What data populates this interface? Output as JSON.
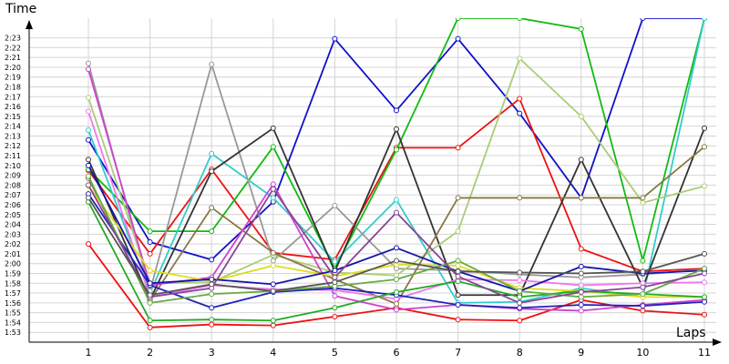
{
  "chart_data": {
    "type": "line",
    "xlabel": "Laps",
    "ylabel": "Time",
    "grid": true,
    "legend": "none",
    "x": [
      1,
      2,
      3,
      4,
      5,
      6,
      7,
      8,
      9,
      10,
      11
    ],
    "y_ticks": [
      "1:53",
      "1:54",
      "1:55",
      "1:56",
      "1:57",
      "1:58",
      "1:59",
      "2:00",
      "2:01",
      "2:02",
      "2:03",
      "2:04",
      "2:05",
      "2:06",
      "2:07",
      "2:08",
      "2:09",
      "2:10",
      "2:11",
      "2:12",
      "2:13",
      "2:14",
      "2:15",
      "2:16",
      "2:17",
      "2:18",
      "2:19",
      "2:20",
      "2:21",
      "2:22",
      "2:23"
    ],
    "y_tick_seconds": [
      113,
      114,
      115,
      116,
      117,
      118,
      119,
      120,
      121,
      122,
      123,
      124,
      125,
      126,
      127,
      128,
      129,
      130,
      131,
      132,
      133,
      134,
      135,
      136,
      137,
      138,
      139,
      140,
      141,
      142,
      143
    ],
    "ylim": [
      112,
      145
    ],
    "ylim_labels": [
      "1:52",
      "2:25"
    ],
    "y_unit": "lap time (m:ss)",
    "series": [
      {
        "color": "#ee1111",
        "values": [
          "2:02",
          "1:53.5",
          "1:53.8",
          "1:53.7",
          "1:54.6",
          "1:55.5",
          "1:54.3",
          "1:54.2",
          "1:56.3",
          "1:55.2",
          "1:54.8"
        ]
      },
      {
        "color": "#1111cc",
        "values": [
          "2:12.6",
          "2:02.2",
          "2:00.4",
          "2:06.3",
          "2:22.9",
          "2:15.6",
          "2:22.9",
          "2:15.3",
          "2:06.7",
          "2:25.0",
          "2:25.0"
        ]
      },
      {
        "color": "#ee1111",
        "values": [
          "2:09.5",
          "2:01",
          "2:09.6",
          "2:01.1",
          "2:00.4",
          "2:11.8",
          "2:11.8",
          "2:16.8",
          "2:01.5",
          "1:59.2",
          "1:59.5"
        ]
      },
      {
        "color": "#11bb11",
        "values": [
          "2:09.6",
          "2:03.3",
          "2:03.3",
          "2:11.9",
          "1:59.5",
          "2:11.6",
          "2:25.0",
          "2:25.0",
          "2:23.9",
          "2:00.3",
          "2:25.0"
        ]
      },
      {
        "color": "#33cccc",
        "values": [
          "2:13.6",
          "1:57.0",
          "2:11.2",
          "2:06.7",
          "2:00.2",
          "2:06.5",
          "1:56.0",
          "1:56.1",
          "1:57.5",
          "1:56.6",
          "2:25.0"
        ]
      },
      {
        "color": "#999999",
        "values": [
          "2:20.4",
          "1:57.2",
          "2:20.3",
          "2:00.3",
          "2:05.9",
          "1:59.5",
          "1:59.3",
          "1:58.9",
          "1:58.6",
          "1:58.9",
          "1:59.4"
        ]
      },
      {
        "color": "#333333",
        "values": [
          "2:10.6",
          "1:56.3",
          "2:09.4",
          "2:13.8",
          "1:59.2",
          "2:13.7",
          "1:56.8",
          "1:56.8",
          "2:10.6",
          "1:57.6",
          "2:13.8"
        ]
      },
      {
        "color": "#aacc77",
        "values": [
          "2:16.9",
          "1:58.0",
          "1:58.1",
          "2:00.9",
          "1:59.1",
          "1:58.8",
          "2:03.3",
          "2:20.9",
          "2:15.0",
          "2:06.2",
          "2:07.9"
        ]
      },
      {
        "color": "#887744",
        "values": [
          "2:08.7",
          "1:56.2",
          "2:05.7",
          "2:01.1",
          "1:58.4",
          "1:55.9",
          "2:06.7",
          "2:06.7",
          "2:06.7",
          "2:06.7",
          "2:11.9"
        ]
      },
      {
        "color": "#cc44cc",
        "values": [
          "2:19.8",
          "1:57.8",
          "1:58.6",
          "2:08.1",
          "1:56.7",
          "1:55.3",
          "1:55.8",
          "1:55.4",
          "1:55.2",
          "1:55.8",
          "1:56.3"
        ]
      },
      {
        "color": "#ee77ee",
        "values": [
          "2:15.5",
          "1:56.6",
          "1:57.8",
          "1:57.4",
          "1:57.3",
          "1:56.4",
          "1:58.4",
          "1:58.3",
          "1:57.8",
          "1:58.0",
          "1:58.1"
        ]
      },
      {
        "color": "#dddd22",
        "values": [
          "2:07.9",
          "1:59.3",
          "1:58.2",
          "1:59.8",
          "1:58.7",
          "1:59.9",
          "1:59.8",
          "1:57.5",
          "1:57.2",
          "1:56.6",
          "1:56.6"
        ]
      },
      {
        "color": "#2222bb",
        "values": [
          "2:07.1",
          "1:57.8",
          "1:55.5",
          "1:57.1",
          "1:57.5",
          "1:56.8",
          "1:55.8",
          "1:55.5",
          "1:55.8",
          "1:55.7",
          "1:56.1"
        ]
      },
      {
        "color": "#1515aa",
        "values": [
          "2:10.0",
          "1:58.0",
          "1:58.4",
          "1:57.9",
          "1:59.3",
          "2:01.6",
          "1:59.2",
          "1:57.2",
          "1:59.7",
          "1:59.0",
          "1:59.3"
        ]
      },
      {
        "color": "#22aa22",
        "values": [
          "2:06.3",
          "1:54.2",
          "1:54.3",
          "1:54.2",
          "1:55.5",
          "1:57.1",
          "1:58.2",
          "1:56.6",
          "1:57.2",
          "1:56.9",
          "1:56.6"
        ]
      },
      {
        "color": "#66aa44",
        "values": [
          "2:08.9",
          "1:56.0",
          "1:56.9",
          "1:57.2",
          "1:57.7",
          "1:58.4",
          "2:00.3",
          "1:57.2",
          "1:56.6",
          "1:56.9",
          "1:59.5"
        ]
      },
      {
        "color": "#884499",
        "values": [
          "2:08.0",
          "1:56.6",
          "1:57.5",
          "2:07.6",
          "1:58.6",
          "2:05.2",
          "1:58.7",
          "1:56.0",
          "1:57.1",
          "1:57.6",
          "1:59.0"
        ]
      },
      {
        "color": "#555555",
        "values": [
          "2:06.7",
          "1:56.8",
          "1:57.9",
          "1:57.2",
          "1:58.1",
          "2:00.3",
          "1:59.2",
          "1:59.1",
          "1:59.0",
          "1:59.2",
          "2:01.0"
        ]
      }
    ]
  }
}
